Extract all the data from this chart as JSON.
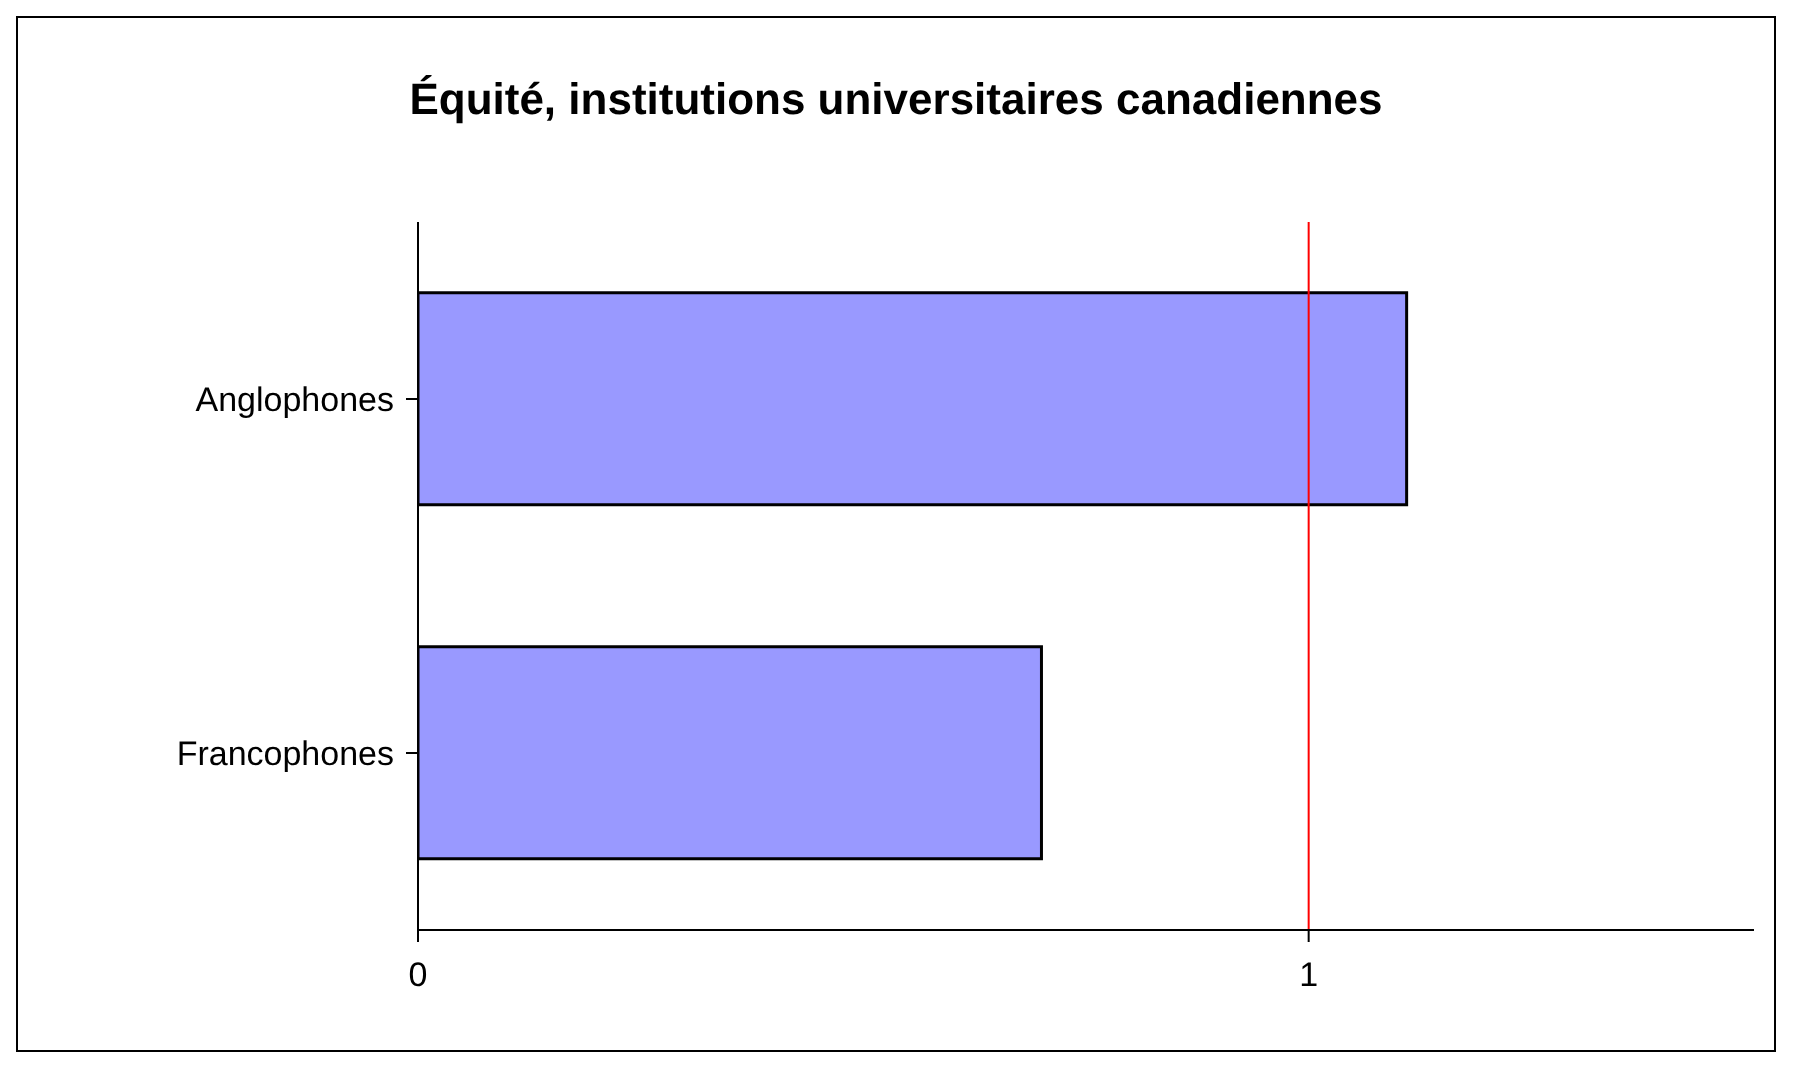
{
  "chart_data": {
    "type": "bar",
    "orientation": "horizontal",
    "title": "Équité, institutions universitaires canadiennes",
    "categories": [
      "Anglophones",
      "Francophones"
    ],
    "values": [
      1.11,
      0.7
    ],
    "color": "#9999ff",
    "xlim": [
      0,
      1.5
    ],
    "xticks": [
      0,
      1
    ],
    "ref_lines": [
      {
        "axis": "x",
        "value": 1,
        "color": "#ff0000"
      }
    ],
    "grid": false,
    "legend": false
  }
}
